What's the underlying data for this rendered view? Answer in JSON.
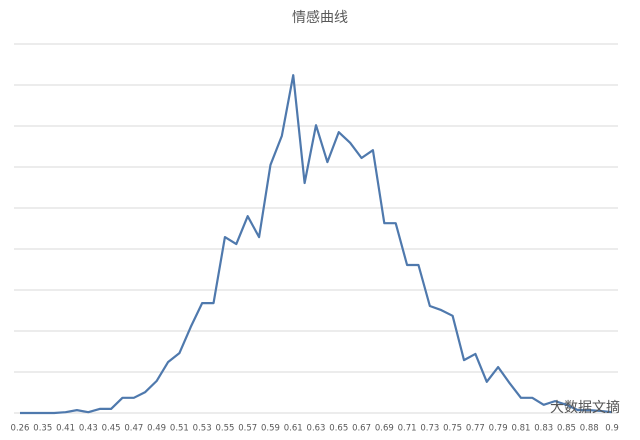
{
  "chart_data": {
    "type": "line",
    "title": "情感曲线",
    "categories": [
      "0.26",
      null,
      "0.35",
      null,
      "0.41",
      null,
      "0.43",
      null,
      "0.45",
      null,
      "0.47",
      null,
      "0.49",
      null,
      "0.51",
      null,
      "0.53",
      null,
      "0.55",
      null,
      "0.57",
      null,
      "0.59",
      null,
      "0.61",
      null,
      "0.63",
      null,
      "0.65",
      null,
      "0.67",
      null,
      "0.69",
      null,
      "0.71",
      null,
      "0.73",
      null,
      "0.75",
      null,
      "0.77",
      null,
      "0.79",
      null,
      "0.81",
      null,
      "0.83",
      null,
      "0.85",
      null,
      "0.88",
      null,
      "0.9"
    ],
    "series": [
      {
        "color": "#4f79ad",
        "values": [
          0,
          0,
          0,
          0,
          0.02,
          0.07,
          0.02,
          0.1,
          0.1,
          0.37,
          0.37,
          0.51,
          0.78,
          1.24,
          1.46,
          2.1,
          2.68,
          2.68,
          4.29,
          4.12,
          4.8,
          4.29,
          6.05,
          6.76,
          8.24,
          5.61,
          7.02,
          6.12,
          6.85,
          6.59,
          6.22,
          6.41,
          4.63,
          4.63,
          3.61,
          3.61,
          2.61,
          2.51,
          2.37,
          1.29,
          1.44,
          0.76,
          1.12,
          0.73,
          0.37,
          0.37,
          0.2,
          0.29,
          0.2,
          0.07,
          0.07,
          0.05,
          0.02
        ]
      }
    ],
    "ylim": [
      0,
      9
    ],
    "yticks": [
      0,
      1,
      2,
      3,
      4,
      5,
      6,
      7,
      8,
      9
    ],
    "grid": true,
    "y_tick_labels": false,
    "watermark": "大数据文摘"
  }
}
